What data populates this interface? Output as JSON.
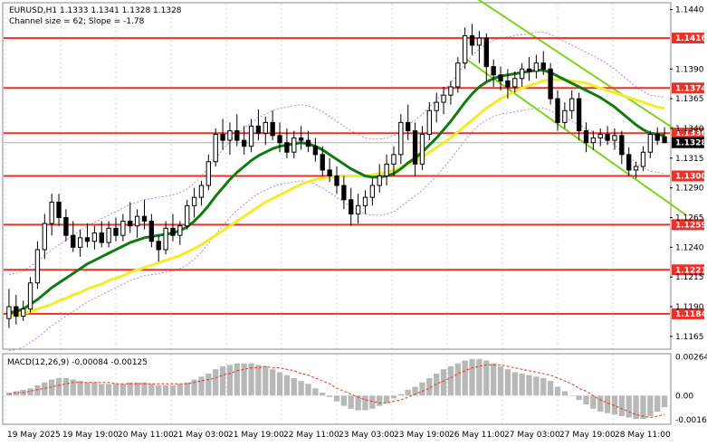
{
  "header": {
    "symbol_line": "EURUSD,H1  1.1333 1.1341 1.1328 1.1328",
    "channel_line": "Channel size = 62; Slope = -1.78"
  },
  "colors": {
    "candle": "#000000",
    "level": "#e8322a",
    "ma_fast": "#127a12",
    "ma_slow": "#f2ec2a",
    "channel": "#7ed320",
    "bands": "#c080e0",
    "macd_hist": "#b8b8b8",
    "macd_signal": "#e8322a"
  },
  "chart_data": [
    {
      "type": "candlestick",
      "ylim": [
        1.1155,
        1.1445
      ],
      "y_ticks": [
        1.144,
        1.139,
        1.1365,
        1.134,
        1.1315,
        1.129,
        1.1265,
        1.124,
        1.1215,
        1.119,
        1.1165
      ],
      "x_ticks": [
        "19 May 2025",
        "19 May 19:00",
        "20 May 11:00",
        "21 May 03:00",
        "21 May 19:00",
        "22 May 11:00",
        "23 May 03:00",
        "23 May 19:00",
        "26 May 11:00",
        "27 May 03:00",
        "27 May 19:00",
        "28 May 11:00"
      ],
      "levels": [
        1.1416,
        1.1374,
        1.1336,
        1.13,
        1.1259,
        1.1221,
        1.1184
      ],
      "current_price": 1.1328,
      "ohlc": [
        [
          1.118,
          1.1205,
          1.1172,
          1.119
        ],
        [
          1.119,
          1.12,
          1.1175,
          1.1182
        ],
        [
          1.1182,
          1.1195,
          1.1178,
          1.1188
        ],
        [
          1.1188,
          1.1215,
          1.1185,
          1.121
        ],
        [
          1.121,
          1.1245,
          1.1205,
          1.1238
        ],
        [
          1.1238,
          1.1268,
          1.123,
          1.126
        ],
        [
          1.126,
          1.1285,
          1.125,
          1.1278
        ],
        [
          1.1278,
          1.1285,
          1.1258,
          1.1265
        ],
        [
          1.1265,
          1.1272,
          1.1245,
          1.125
        ],
        [
          1.125,
          1.1262,
          1.1236,
          1.124
        ],
        [
          1.124,
          1.1255,
          1.1232,
          1.1248
        ],
        [
          1.1248,
          1.126,
          1.124,
          1.1245
        ],
        [
          1.1245,
          1.1258,
          1.1238,
          1.1252
        ],
        [
          1.1252,
          1.1262,
          1.124,
          1.1244
        ],
        [
          1.1244,
          1.1262,
          1.124,
          1.1256
        ],
        [
          1.1256,
          1.1265,
          1.1245,
          1.125
        ],
        [
          1.125,
          1.1268,
          1.1245,
          1.1262
        ],
        [
          1.1262,
          1.1278,
          1.1252,
          1.1258
        ],
        [
          1.1258,
          1.1272,
          1.1248,
          1.1266
        ],
        [
          1.1266,
          1.128,
          1.1255,
          1.1262
        ],
        [
          1.1262,
          1.1268,
          1.124,
          1.1245
        ],
        [
          1.1245,
          1.125,
          1.1228,
          1.1238
        ],
        [
          1.1238,
          1.1262,
          1.1234,
          1.1256
        ],
        [
          1.1256,
          1.1268,
          1.1245,
          1.125
        ],
        [
          1.125,
          1.1262,
          1.1242,
          1.1258
        ],
        [
          1.1258,
          1.128,
          1.1255,
          1.1275
        ],
        [
          1.1275,
          1.129,
          1.1265,
          1.1282
        ],
        [
          1.1282,
          1.1296,
          1.1275,
          1.1292
        ],
        [
          1.1292,
          1.1318,
          1.1288,
          1.1312
        ],
        [
          1.1312,
          1.134,
          1.1308,
          1.1335
        ],
        [
          1.1335,
          1.1348,
          1.1322,
          1.133
        ],
        [
          1.133,
          1.1345,
          1.1318,
          1.1338
        ],
        [
          1.1338,
          1.1352,
          1.1325,
          1.133
        ],
        [
          1.133,
          1.1342,
          1.1318,
          1.1325
        ],
        [
          1.1325,
          1.1348,
          1.132,
          1.1342
        ],
        [
          1.1342,
          1.1356,
          1.133,
          1.1336
        ],
        [
          1.1336,
          1.135,
          1.1326,
          1.1345
        ],
        [
          1.1345,
          1.1355,
          1.133,
          1.1334
        ],
        [
          1.1334,
          1.1345,
          1.132,
          1.1328
        ],
        [
          1.1328,
          1.134,
          1.1315,
          1.132
        ],
        [
          1.132,
          1.1338,
          1.1315,
          1.1332
        ],
        [
          1.1332,
          1.1342,
          1.1322,
          1.133
        ],
        [
          1.133,
          1.1338,
          1.132,
          1.1325
        ],
        [
          1.1325,
          1.1332,
          1.1312,
          1.1318
        ],
        [
          1.1318,
          1.1325,
          1.13,
          1.1305
        ],
        [
          1.1305,
          1.1315,
          1.1295,
          1.13
        ],
        [
          1.13,
          1.1308,
          1.1285,
          1.1292
        ],
        [
          1.1292,
          1.13,
          1.1272,
          1.128
        ],
        [
          1.128,
          1.129,
          1.1258,
          1.1268
        ],
        [
          1.1268,
          1.1285,
          1.126,
          1.1275
        ],
        [
          1.1275,
          1.1288,
          1.1268,
          1.1282
        ],
        [
          1.1282,
          1.1298,
          1.1275,
          1.1292
        ],
        [
          1.1292,
          1.131,
          1.1286,
          1.13
        ],
        [
          1.13,
          1.1318,
          1.1292,
          1.131
        ],
        [
          1.131,
          1.1325,
          1.13,
          1.1318
        ],
        [
          1.1318,
          1.1352,
          1.131,
          1.1345
        ],
        [
          1.1345,
          1.136,
          1.133,
          1.1338
        ],
        [
          1.1338,
          1.1345,
          1.13,
          1.131
        ],
        [
          1.131,
          1.1342,
          1.1305,
          1.1335
        ],
        [
          1.1335,
          1.1362,
          1.133,
          1.1355
        ],
        [
          1.1355,
          1.137,
          1.1345,
          1.1362
        ],
        [
          1.1362,
          1.1375,
          1.1352,
          1.1368
        ],
        [
          1.1368,
          1.138,
          1.136,
          1.1375
        ],
        [
          1.1375,
          1.14,
          1.137,
          1.1395
        ],
        [
          1.1395,
          1.1425,
          1.139,
          1.1418
        ],
        [
          1.1418,
          1.1428,
          1.1402,
          1.141
        ],
        [
          1.141,
          1.1422,
          1.1395,
          1.1416
        ],
        [
          1.1416,
          1.142,
          1.138,
          1.1392
        ],
        [
          1.1392,
          1.1398,
          1.1375,
          1.1385
        ],
        [
          1.1385,
          1.1392,
          1.1372,
          1.138
        ],
        [
          1.138,
          1.139,
          1.1365,
          1.1375
        ],
        [
          1.1375,
          1.1388,
          1.137,
          1.1382
        ],
        [
          1.1382,
          1.1395,
          1.1375,
          1.139
        ],
        [
          1.139,
          1.14,
          1.138,
          1.1388
        ],
        [
          1.1388,
          1.1402,
          1.1382,
          1.1395
        ],
        [
          1.1395,
          1.1405,
          1.1385,
          1.139
        ],
        [
          1.139,
          1.1395,
          1.136,
          1.1365
        ],
        [
          1.1365,
          1.1372,
          1.1338,
          1.1345
        ],
        [
          1.1345,
          1.1362,
          1.134,
          1.1355
        ],
        [
          1.1355,
          1.1372,
          1.1348,
          1.1365
        ],
        [
          1.1365,
          1.137,
          1.133,
          1.1338
        ],
        [
          1.1338,
          1.1345,
          1.132,
          1.1328
        ],
        [
          1.1328,
          1.1338,
          1.1322,
          1.1332
        ],
        [
          1.1332,
          1.134,
          1.1325,
          1.1335
        ],
        [
          1.1335,
          1.1342,
          1.1326,
          1.133
        ],
        [
          1.133,
          1.134,
          1.1322,
          1.1334
        ],
        [
          1.1334,
          1.1338,
          1.131,
          1.1318
        ],
        [
          1.1318,
          1.1324,
          1.13,
          1.1305
        ],
        [
          1.1305,
          1.1312,
          1.1298,
          1.1308
        ],
        [
          1.1308,
          1.1325,
          1.1304,
          1.132
        ],
        [
          1.132,
          1.1338,
          1.1315,
          1.1335
        ],
        [
          1.1335,
          1.1341,
          1.1326,
          1.133
        ],
        [
          1.1333,
          1.1341,
          1.1328,
          1.1328
        ]
      ],
      "ma_fast": [
        1.1185,
        1.1186,
        1.1188,
        1.1192,
        1.1196,
        1.1201,
        1.1206,
        1.121,
        1.1214,
        1.1218,
        1.1222,
        1.1226,
        1.1229,
        1.1232,
        1.1235,
        1.1238,
        1.1241,
        1.1244,
        1.1246,
        1.1248,
        1.1249,
        1.125,
        1.1251,
        1.1252,
        1.1254,
        1.1257,
        1.1262,
        1.1268,
        1.1275,
        1.1283,
        1.129,
        1.1297,
        1.1303,
        1.1308,
        1.1313,
        1.1317,
        1.132,
        1.1323,
        1.1325,
        1.1326,
        1.1327,
        1.1328,
        1.1327,
        1.1325,
        1.1322,
        1.1318,
        1.1314,
        1.131,
        1.1306,
        1.1303,
        1.13,
        1.1299,
        1.1299,
        1.13,
        1.1302,
        1.1306,
        1.1311,
        1.1315,
        1.132,
        1.1326,
        1.1332,
        1.1339,
        1.1346,
        1.1354,
        1.1362,
        1.1369,
        1.1375,
        1.1379,
        1.1382,
        1.1384,
        1.1385,
        1.1386,
        1.1387,
        1.1388,
        1.1389,
        1.1389,
        1.1387,
        1.1384,
        1.1381,
        1.1378,
        1.1375,
        1.1372,
        1.1369,
        1.1366,
        1.1362,
        1.1358,
        1.1353,
        1.1348,
        1.1343,
        1.1339,
        1.1336,
        1.1335,
        1.1334
      ],
      "ma_slow": [
        1.1182,
        1.1183,
        1.1184,
        1.1186,
        1.1188,
        1.119,
        1.1192,
        1.1195,
        1.1197,
        1.12,
        1.1202,
        1.1205,
        1.1207,
        1.1209,
        1.1212,
        1.1214,
        1.1216,
        1.1219,
        1.1221,
        1.1223,
        1.1225,
        1.1227,
        1.1229,
        1.1231,
        1.1233,
        1.1236,
        1.1239,
        1.1242,
        1.1246,
        1.125,
        1.1254,
        1.1258,
        1.1262,
        1.1266,
        1.127,
        1.1274,
        1.1278,
        1.1281,
        1.1284,
        1.1287,
        1.129,
        1.1293,
        1.1295,
        1.1297,
        1.1298,
        1.1299,
        1.13,
        1.13,
        1.13,
        1.13,
        1.13,
        1.1301,
        1.1302,
        1.1303,
        1.1305,
        1.1307,
        1.131,
        1.1313,
        1.1316,
        1.132,
        1.1324,
        1.1328,
        1.1332,
        1.1337,
        1.1342,
        1.1347,
        1.1352,
        1.1357,
        1.1361,
        1.1365,
        1.1368,
        1.1371,
        1.1374,
        1.1376,
        1.1378,
        1.138,
        1.1381,
        1.1381,
        1.1381,
        1.138,
        1.1379,
        1.1378,
        1.1376,
        1.1374,
        1.1372,
        1.137,
        1.1368,
        1.1366,
        1.1364,
        1.1362,
        1.136,
        1.1358,
        1.1357
      ],
      "channel_top": [
        [
          1.144,
          68
        ],
        [
          1.1345,
          92
        ]
      ],
      "channel_bottom": [
        [
          1.1382,
          68
        ],
        [
          1.128,
          92
        ]
      ]
    },
    {
      "type": "bar",
      "title": "MACD(12,26,9) -0.00084 -0.00125",
      "ylim": [
        -0.0019,
        0.0028
      ],
      "y_ticks_labels": [
        "0.00264",
        "0.00",
        "-0.00165"
      ],
      "y_ticks_values": [
        0.00264,
        0.0,
        -0.00165
      ],
      "macd": [
        0.0002,
        0.0003,
        0.0004,
        0.0005,
        0.0007,
        0.0009,
        0.0011,
        0.0012,
        0.0012,
        0.0011,
        0.001,
        0.0009,
        0.0009,
        0.0008,
        0.0008,
        0.0008,
        0.0008,
        0.0009,
        0.0009,
        0.0009,
        0.0008,
        0.0007,
        0.0007,
        0.0007,
        0.0008,
        0.0009,
        0.0011,
        0.0013,
        0.0015,
        0.0018,
        0.002,
        0.0021,
        0.0022,
        0.0022,
        0.0022,
        0.0021,
        0.002,
        0.0018,
        0.0016,
        0.0014,
        0.0012,
        0.001,
        0.0008,
        0.0005,
        0.0002,
        -0.0001,
        -0.0004,
        -0.0007,
        -0.0009,
        -0.001,
        -0.001,
        -0.0009,
        -0.0007,
        -0.0005,
        -0.0002,
        0.0001,
        0.0004,
        0.0006,
        0.0009,
        0.0012,
        0.0015,
        0.0018,
        0.002,
        0.0022,
        0.0024,
        0.0025,
        0.0025,
        0.0024,
        0.0022,
        0.002,
        0.0018,
        0.0016,
        0.0015,
        0.0014,
        0.0013,
        0.0012,
        0.001,
        0.0006,
        0.0003,
        0.0,
        -0.0003,
        -0.0006,
        -0.0009,
        -0.0011,
        -0.0012,
        -0.0013,
        -0.0014,
        -0.0015,
        -0.0016,
        -0.0016,
        -0.0014,
        -0.0011,
        -0.0008
      ],
      "signal": [
        0.0001,
        0.0002,
        0.0002,
        0.0003,
        0.0004,
        0.0005,
        0.0006,
        0.0007,
        0.0008,
        0.0009,
        0.0009,
        0.0009,
        0.0009,
        0.0009,
        0.0009,
        0.0008,
        0.0008,
        0.0008,
        0.0008,
        0.0008,
        0.0008,
        0.0008,
        0.0008,
        0.0008,
        0.0008,
        0.0008,
        0.0009,
        0.001,
        0.0011,
        0.0012,
        0.0014,
        0.0015,
        0.0017,
        0.0018,
        0.0019,
        0.0019,
        0.002,
        0.0019,
        0.0019,
        0.0018,
        0.0017,
        0.0015,
        0.0014,
        0.0012,
        0.001,
        0.0008,
        0.0005,
        0.0003,
        0.0001,
        -0.0001,
        -0.0003,
        -0.0004,
        -0.0005,
        -0.0005,
        -0.0004,
        -0.0003,
        -0.0001,
        0.0001,
        0.0003,
        0.0005,
        0.0008,
        0.001,
        0.0012,
        0.0015,
        0.0017,
        0.0019,
        0.002,
        0.0021,
        0.0021,
        0.0021,
        0.002,
        0.0019,
        0.0018,
        0.0017,
        0.0016,
        0.0015,
        0.0014,
        0.0012,
        0.001,
        0.0008,
        0.0005,
        0.0003,
        0.0,
        -0.0003,
        -0.0005,
        -0.0007,
        -0.0009,
        -0.0011,
        -0.0013,
        -0.0014,
        -0.0015,
        -0.0014,
        -0.0013
      ]
    }
  ]
}
